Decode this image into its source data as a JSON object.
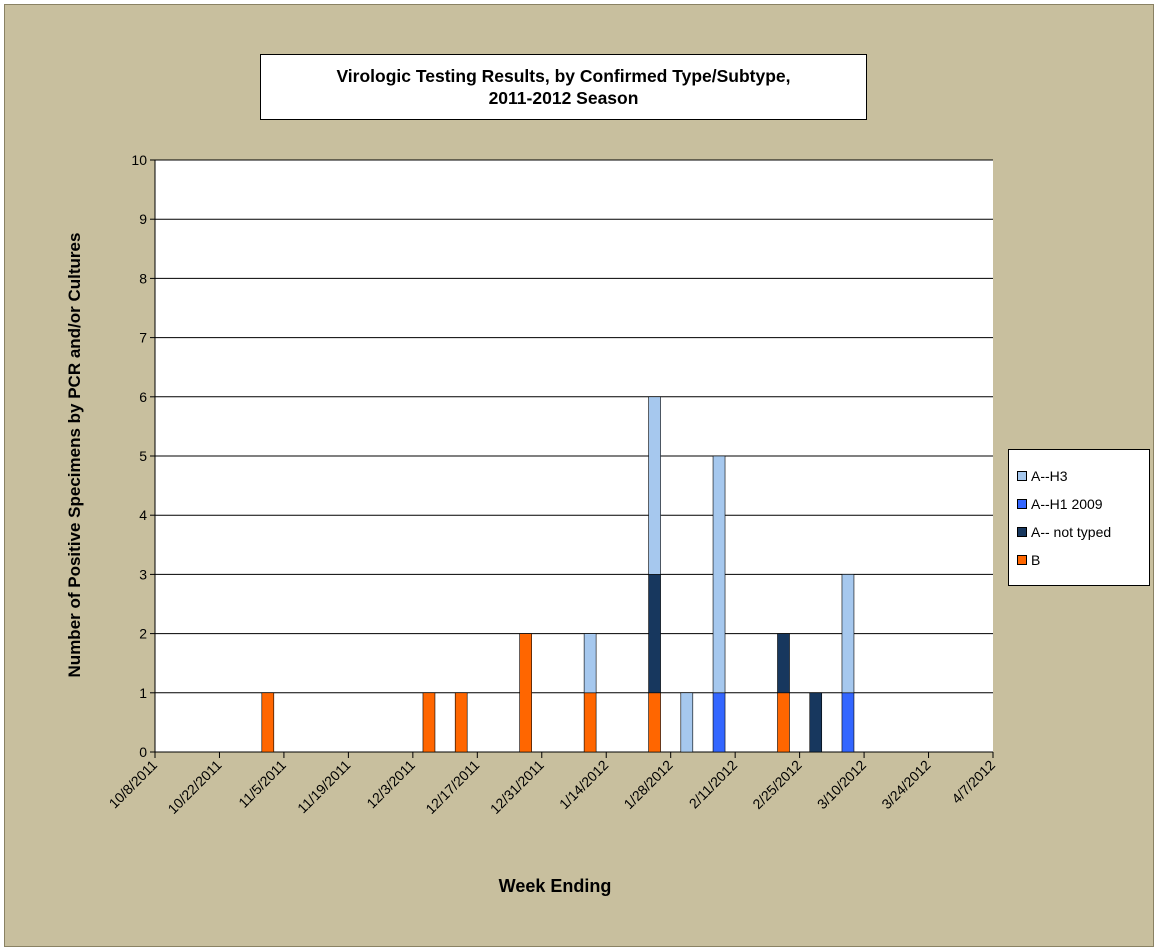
{
  "chart_data": {
    "type": "bar",
    "stacked": true,
    "title_line1": "Virologic Testing Results, by Confirmed Type/Subtype,",
    "title_line2": "2011-2012 Season",
    "xlabel": "Week Ending",
    "ylabel": "Number of Positive Specimens by PCR and/or Cultures",
    "ylim": [
      0,
      10
    ],
    "yticks": [
      "0",
      "1",
      "2",
      "3",
      "4",
      "5",
      "6",
      "7",
      "8",
      "9",
      "10"
    ],
    "x_tick_labels": [
      "10/8/2011",
      "10/22/2011",
      "11/5/2011",
      "11/19/2011",
      "12/3/2011",
      "12/17/2011",
      "12/31/2011",
      "1/14/2012",
      "1/28/2012",
      "2/11/2012",
      "2/25/2012",
      "3/10/2012",
      "3/24/2012",
      "4/7/2012"
    ],
    "categories": [
      "10/8/2011",
      "10/15/2011",
      "10/22/2011",
      "10/29/2011",
      "11/5/2011",
      "11/12/2011",
      "11/19/2011",
      "11/26/2011",
      "12/3/2011",
      "12/10/2011",
      "12/17/2011",
      "12/24/2011",
      "12/31/2011",
      "1/7/2012",
      "1/14/2012",
      "1/21/2012",
      "1/28/2012",
      "2/4/2012",
      "2/11/2012",
      "2/18/2012",
      "2/25/2012",
      "3/3/2012",
      "3/10/2012",
      "3/17/2012",
      "3/24/2012",
      "3/31/2012",
      "4/7/2012"
    ],
    "series": [
      {
        "name": "B",
        "color": "#ff6600",
        "values": [
          0,
          0,
          0,
          1,
          0,
          0,
          0,
          0,
          1,
          1,
          0,
          2,
          0,
          1,
          0,
          1,
          0,
          0,
          0,
          1,
          0,
          0,
          0,
          0,
          0,
          0,
          0
        ]
      },
      {
        "name": "A-- not typed",
        "color": "#17375e",
        "values": [
          0,
          0,
          0,
          0,
          0,
          0,
          0,
          0,
          0,
          0,
          0,
          0,
          0,
          0,
          0,
          2,
          0,
          0,
          0,
          1,
          1,
          0,
          0,
          0,
          0,
          0,
          0
        ]
      },
      {
        "name": "A--H1 2009",
        "color": "#3366ff",
        "values": [
          0,
          0,
          0,
          0,
          0,
          0,
          0,
          0,
          0,
          0,
          0,
          0,
          0,
          0,
          0,
          0,
          0,
          1,
          0,
          0,
          0,
          1,
          0,
          0,
          0,
          0,
          0
        ]
      },
      {
        "name": "A--H3",
        "color": "#a6c8ee",
        "values": [
          0,
          0,
          0,
          0,
          0,
          0,
          0,
          0,
          0,
          0,
          0,
          0,
          0,
          1,
          0,
          3,
          1,
          4,
          0,
          0,
          0,
          2,
          0,
          0,
          0,
          0,
          0
        ]
      }
    ],
    "legend_order": [
      "A--H3",
      "A--H1 2009",
      "A-- not typed",
      "B"
    ],
    "legend_position": "right",
    "grid": true
  }
}
